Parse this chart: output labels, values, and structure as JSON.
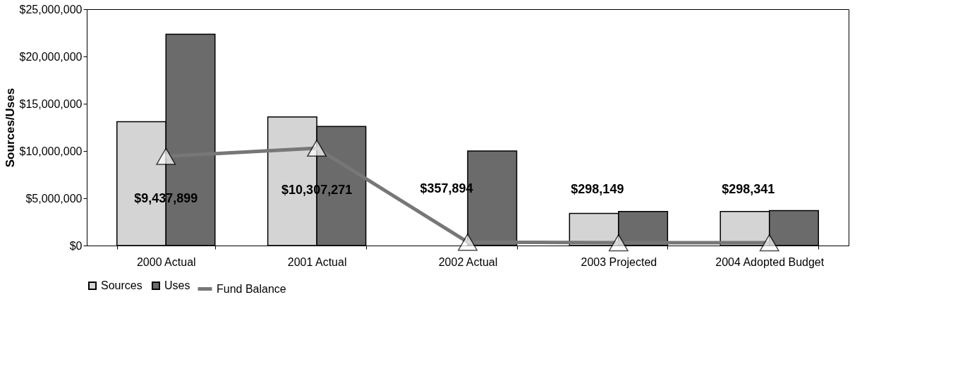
{
  "chart_data": {
    "type": "bar",
    "ylabel": "Sources/Uses",
    "categories": [
      "2000 Actual",
      "2001 Actual",
      "2002 Actual",
      "2003 Projected",
      "2004 Adopted Budget"
    ],
    "series": [
      {
        "name": "Sources",
        "color": "#d4d4d4",
        "values": [
          13100000,
          13600000,
          0,
          3400000,
          3600000
        ]
      },
      {
        "name": "Uses",
        "color": "#6b6b6b",
        "values": [
          22350000,
          12600000,
          10000000,
          3600000,
          3700000
        ]
      },
      {
        "name": "Fund Balance",
        "type": "line",
        "color": "#777777",
        "marker": "triangle",
        "values": [
          9437899,
          10307271,
          357894,
          298149,
          298341
        ],
        "value_labels": [
          "$9,437,899",
          "$10,307,271",
          "$357,894",
          "$298,149",
          "$298,341"
        ]
      }
    ],
    "ylim": [
      0,
      25000000
    ],
    "yticks": [
      {
        "value": 0,
        "label": "$0"
      },
      {
        "value": 5000000,
        "label": "$5,000,000"
      },
      {
        "value": 10000000,
        "label": "$10,000,000"
      },
      {
        "value": 15000000,
        "label": "$15,000,000"
      },
      {
        "value": 20000000,
        "label": "$20,000,000"
      },
      {
        "value": 25000000,
        "label": "$25,000,000"
      }
    ],
    "grid": false,
    "legend": "bottom"
  }
}
